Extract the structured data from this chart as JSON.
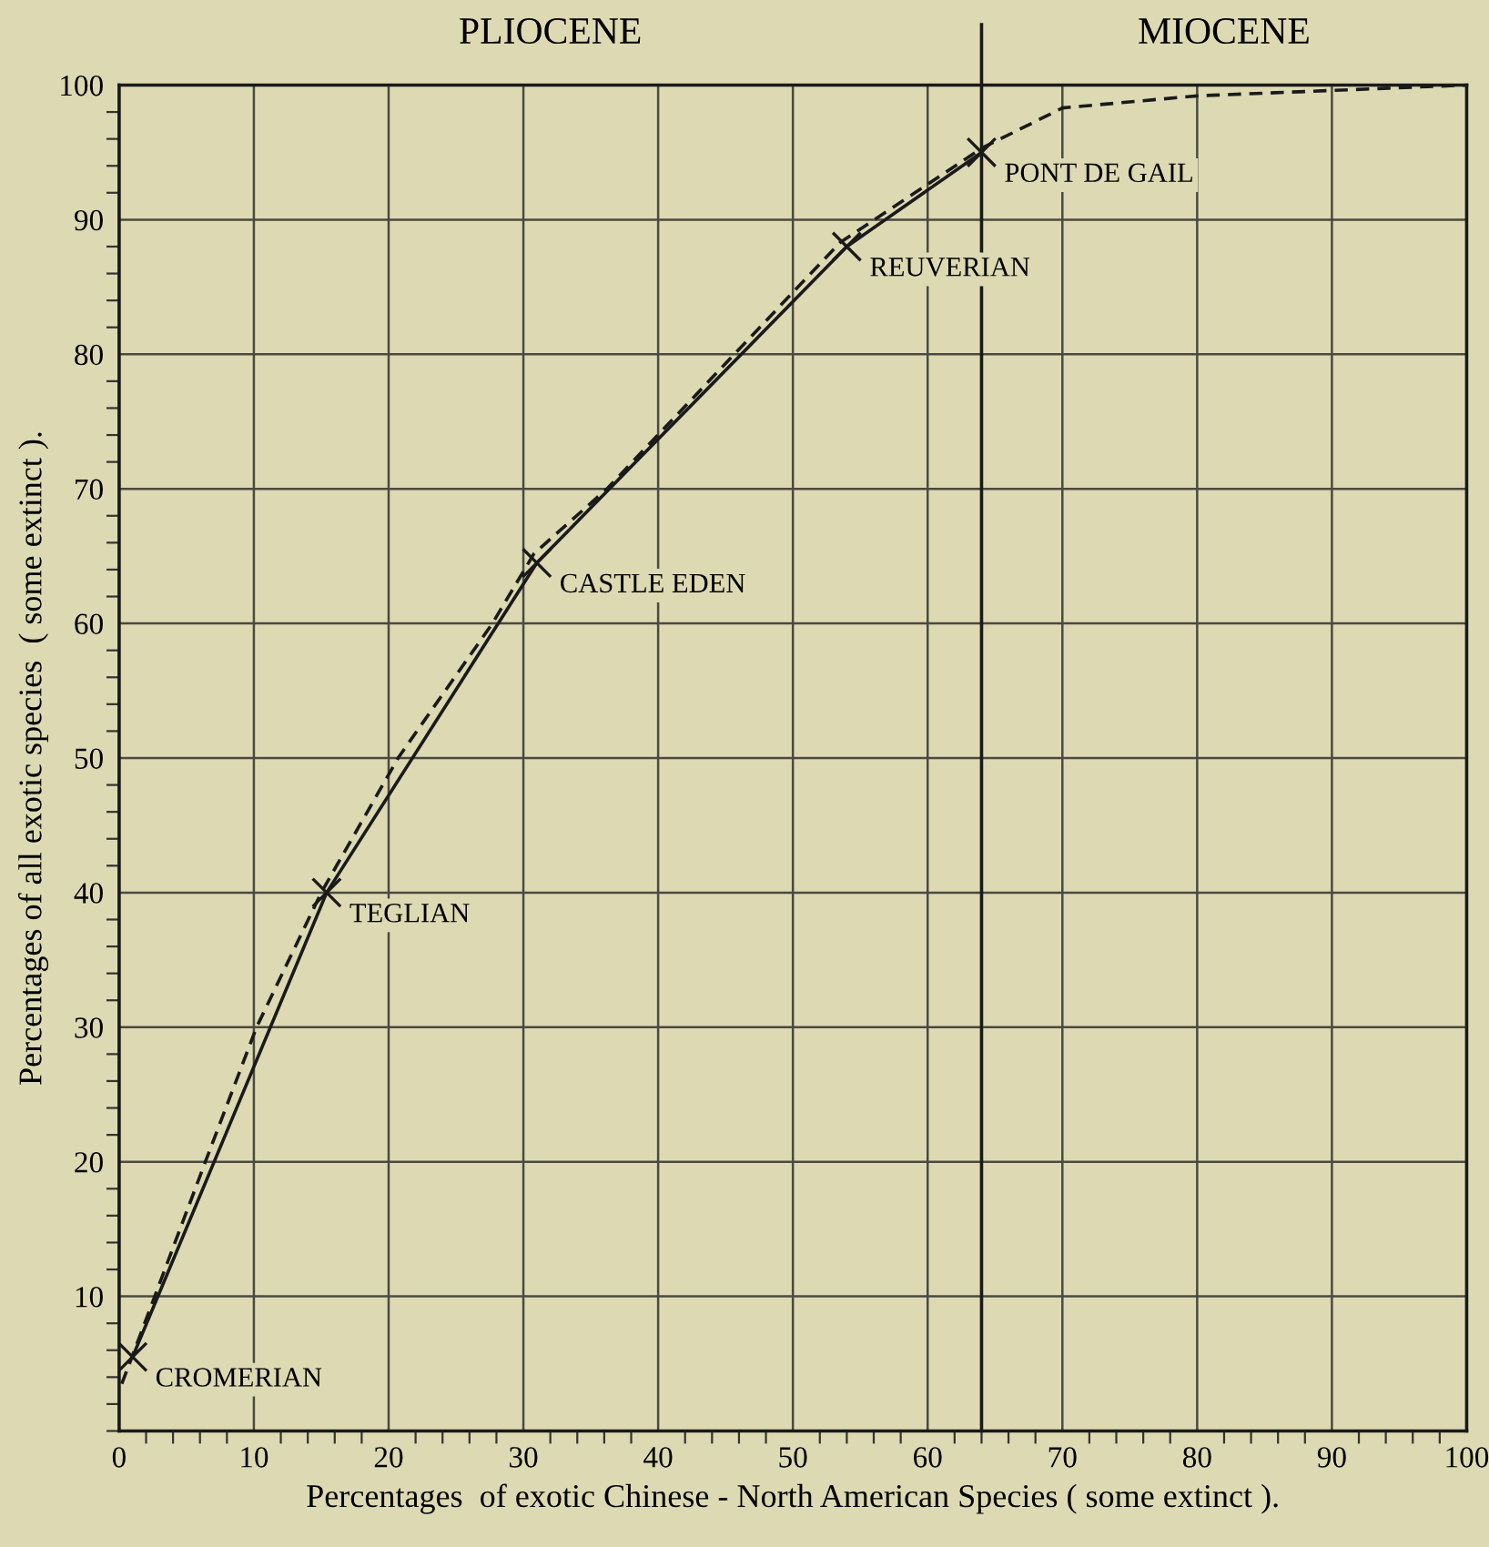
{
  "chart_data": {
    "type": "line",
    "xlabel": "Percentages  of exotic Chinese - North American Species ( some extinct ).",
    "ylabel": "Percentages of all exotic species  ( some extinct ).",
    "series": [
      {
        "color": "#1a1a1a",
        "line_style": "solid",
        "marker": "cross",
        "x": [
          1,
          15.4,
          31,
          54,
          64
        ],
        "values": [
          5.5,
          40,
          64.5,
          88,
          95
        ]
      },
      {
        "color": "#1a1a1a",
        "line_style": "dashed",
        "marker": "none",
        "x": [
          0.2,
          6.4,
          10.2,
          15,
          20.7,
          27.7,
          30.8,
          36.2,
          53.5,
          64,
          70,
          80,
          90,
          100
        ],
        "values": [
          3.5,
          20,
          30,
          40,
          50,
          60,
          65.2,
          70,
          88.3,
          95.3,
          98.3,
          99.2,
          99.6,
          100
        ]
      }
    ],
    "xlim": [
      0,
      100
    ],
    "ylim": [
      0,
      100
    ],
    "xticks": [
      0,
      10,
      20,
      30,
      40,
      50,
      60,
      70,
      80,
      90,
      100
    ],
    "yticks": [
      10,
      20,
      30,
      40,
      50,
      60,
      70,
      80,
      90,
      100
    ],
    "grid": true,
    "ref_lines": [
      {
        "axis": "x",
        "value": 64,
        "color": "#1a1a1a",
        "line_style": "solid"
      }
    ],
    "annotations": [
      "PLIOCENE",
      "MIOCENE",
      {
        "text": "CROMERIAN",
        "x": 1,
        "y": 5.5
      },
      {
        "text": "TEGLIAN",
        "x": 15.4,
        "y": 40
      },
      {
        "text": "CASTLE EDEN",
        "x": 31,
        "y": 64.5
      },
      {
        "text": "REUVERIAN",
        "x": 54,
        "y": 88
      },
      {
        "text": "PONT DE GAIL",
        "x": 64,
        "y": 95
      }
    ]
  }
}
